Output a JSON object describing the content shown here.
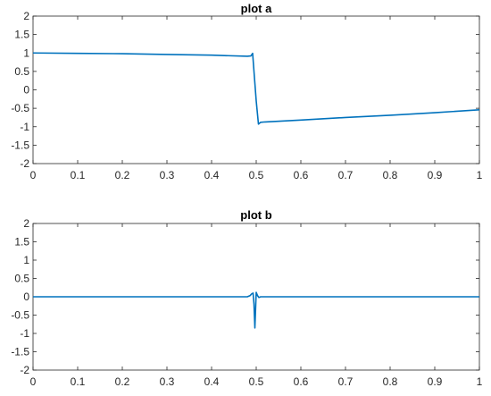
{
  "chart_data": [
    {
      "type": "line",
      "title": "plot a",
      "xlabel": "",
      "ylabel": "",
      "xlim": [
        0,
        1
      ],
      "ylim": [
        -2,
        2
      ],
      "xticks": [
        "0",
        "0.1",
        "0.2",
        "0.3",
        "0.4",
        "0.5",
        "0.6",
        "0.7",
        "0.8",
        "0.9",
        "1"
      ],
      "yticks": [
        "2",
        "1.5",
        "1",
        "0.5",
        "0",
        "-0.5",
        "-1",
        "-1.5",
        "-2"
      ],
      "grid": false,
      "series_color": "#0072BD",
      "series": [
        {
          "x": [
            0,
            0.1,
            0.2,
            0.3,
            0.4,
            0.48,
            0.488,
            0.492,
            0.495,
            0.5,
            0.505,
            0.51,
            0.52,
            0.6,
            0.7,
            0.8,
            0.9,
            1.0
          ],
          "y": [
            1.0,
            0.99,
            0.98,
            0.96,
            0.94,
            0.91,
            0.92,
            0.99,
            0.5,
            -0.3,
            -0.93,
            -0.88,
            -0.87,
            -0.82,
            -0.75,
            -0.69,
            -0.62,
            -0.54
          ]
        }
      ]
    },
    {
      "type": "line",
      "title": "plot b",
      "xlabel": "",
      "ylabel": "",
      "xlim": [
        0,
        1
      ],
      "ylim": [
        -2,
        2
      ],
      "xticks": [
        "0",
        "0.1",
        "0.2",
        "0.3",
        "0.4",
        "0.5",
        "0.6",
        "0.7",
        "0.8",
        "0.9",
        "1"
      ],
      "yticks": [
        "2",
        "1.5",
        "1",
        "0.5",
        "0",
        "-0.5",
        "-1",
        "-1.5",
        "-2"
      ],
      "grid": false,
      "series_color": "#0072BD",
      "series": [
        {
          "x": [
            0,
            0.48,
            0.486,
            0.49,
            0.493,
            0.495,
            0.497,
            0.5,
            0.503,
            0.506,
            0.51,
            1.0
          ],
          "y": [
            0,
            0,
            0.03,
            0.08,
            0.1,
            -0.2,
            -0.85,
            0.12,
            0.03,
            -0.02,
            0,
            0
          ]
        }
      ]
    }
  ]
}
